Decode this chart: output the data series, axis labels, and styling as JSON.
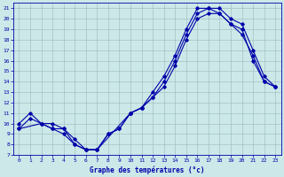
{
  "xlabel": "Graphe des températures (°c)",
  "xlim": [
    -0.5,
    23.5
  ],
  "ylim": [
    7,
    21.5
  ],
  "yticks": [
    7,
    8,
    9,
    10,
    11,
    12,
    13,
    14,
    15,
    16,
    17,
    18,
    19,
    20,
    21
  ],
  "xticks": [
    0,
    1,
    2,
    3,
    4,
    5,
    6,
    7,
    8,
    9,
    10,
    11,
    12,
    13,
    14,
    15,
    16,
    17,
    18,
    19,
    20,
    21,
    22,
    23
  ],
  "bg_color": "#cce8e8",
  "line_color": "#0000aa",
  "grid_color": "#99bbbb",
  "line1_x": [
    0,
    1,
    2,
    3,
    4,
    5,
    6,
    7,
    8,
    9,
    10,
    11,
    12,
    13,
    14,
    15,
    16,
    17,
    18,
    19,
    20,
    21,
    22,
    23
  ],
  "line1_y": [
    10,
    11,
    10,
    10,
    9.5,
    8,
    7.5,
    7.5,
    9.0,
    9.5,
    11,
    11.5,
    13,
    14.5,
    16.5,
    19.0,
    21.0,
    21.0,
    21.0,
    20.0,
    19.5,
    17.0,
    14.5,
    13.5
  ],
  "line2_x": [
    0,
    1,
    2,
    3,
    4,
    5,
    6,
    7,
    8,
    9,
    10,
    11,
    12,
    13,
    14,
    15,
    16,
    17,
    18,
    19,
    20,
    21,
    22,
    23
  ],
  "line2_y": [
    9.5,
    10.5,
    10.0,
    9.5,
    9.0,
    8.0,
    7.5,
    7.5,
    9.0,
    9.5,
    11,
    11.5,
    12.5,
    14.0,
    16.0,
    18.5,
    20.5,
    21.0,
    20.5,
    19.5,
    18.5,
    16.5,
    14.0,
    13.5
  ],
  "line3_x": [
    0,
    2,
    3,
    4,
    5,
    6,
    7,
    10,
    11,
    12,
    13,
    14,
    15,
    16,
    17,
    18,
    19,
    20,
    21,
    22,
    23
  ],
  "line3_y": [
    9.5,
    10.0,
    9.5,
    9.5,
    8.5,
    7.5,
    7.5,
    11.0,
    11.5,
    12.5,
    13.5,
    15.5,
    18.0,
    20.0,
    20.5,
    20.5,
    19.5,
    19.0,
    16.0,
    14.0,
    13.5
  ]
}
